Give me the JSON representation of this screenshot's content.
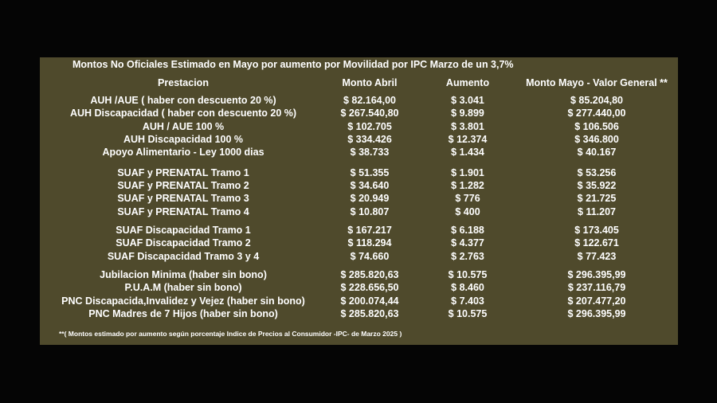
{
  "title": "Montos  No Oficiales Estimado en Mayo por aumento por Movilidad por IPC Marzo de un 3,7%",
  "headers": [
    "Prestacion",
    "Monto Abril",
    "Aumento",
    "Monto Mayo - Valor General **"
  ],
  "rows": [
    [
      "AUH /AUE ( haber con descuento 20 %)",
      "$ 82.164,00",
      "$ 3.041",
      "$ 85.204,80"
    ],
    [
      "AUH Discapacidad ( haber con descuento 20 %)",
      "$ 267.540,80",
      "$ 9.899",
      "$ 277.440,00"
    ],
    [
      "AUH / AUE 100 %",
      "$ 102.705",
      "$ 3.801",
      "$ 106.506"
    ],
    [
      "AUH Discapacidad 100 %",
      "$ 334.426",
      "$ 12.374",
      "$ 346.800"
    ],
    [
      "Apoyo Alimentario - Ley 1000 dias",
      "$ 38.733",
      "$ 1.434",
      "$ 40.167"
    ],
    [
      "SUAF y PRENATAL Tramo 1",
      "$ 51.355",
      "$ 1.901",
      "$ 53.256"
    ],
    [
      "SUAF y PRENATAL Tramo 2",
      "$ 34.640",
      "$ 1.282",
      "$ 35.922"
    ],
    [
      "SUAF y PRENATAL Tramo 3",
      "$ 20.949",
      "$ 776",
      "$ 21.725"
    ],
    [
      "SUAF y PRENATAL Tramo 4",
      "$ 10.807",
      "$ 400",
      "$ 11.207"
    ],
    [
      "SUAF Discapacidad Tramo 1",
      "$ 167.217",
      "$ 6.188",
      "$ 173.405"
    ],
    [
      "SUAF Discapacidad Tramo 2",
      "$ 118.294",
      "$ 4.377",
      "$ 122.671"
    ],
    [
      "SUAF Discapacidad Tramo 3 y 4",
      "$ 74.660",
      "$ 2.763",
      "$ 77.423"
    ],
    [
      "Jubilacion Minima (haber sin bono)",
      "$ 285.820,63",
      "$ 10.575",
      "$ 296.395,99"
    ],
    [
      "P.U.A.M (haber sin bono)",
      "$ 228.656,50",
      "$ 8.460",
      "$ 237.116,79"
    ],
    [
      "PNC Discapacida,Invalidez y Vejez (haber sin bono)",
      "$ 200.074,44",
      "$ 7.403",
      "$ 207.477,20"
    ],
    [
      "PNC Madres de 7 Hijos (haber sin bono)",
      "$ 285.820,63",
      "$ 10.575",
      "$ 296.395,99"
    ]
  ],
  "footnote": "**( Montos estimado por aumento según porcentaje  Indice de Precios al Consumidor -IPC- de Marzo 2025 )",
  "colors": {
    "page_background": "#050505",
    "panel_background": "#4f4a2c",
    "text": "#ffffff"
  }
}
